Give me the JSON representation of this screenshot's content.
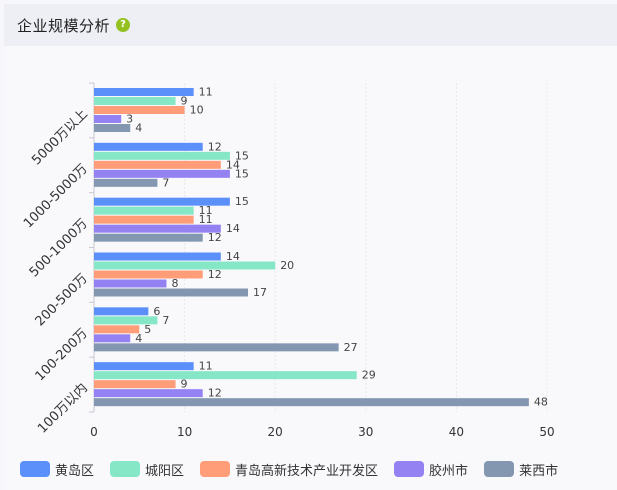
{
  "header": {
    "title": "企业规模分析",
    "help_icon": "question-circle-icon",
    "help_glyph": "?"
  },
  "chart_data": {
    "type": "bar",
    "orientation": "horizontal",
    "categories": [
      "5000万以上",
      "1000-5000万",
      "500-1000万",
      "200-500万",
      "100-200万",
      "100万以内"
    ],
    "series": [
      {
        "name": "黄岛区",
        "color": "#5b8ff9",
        "values": [
          11,
          12,
          15,
          14,
          6,
          11
        ]
      },
      {
        "name": "城阳区",
        "color": "#86e7c7",
        "values": [
          9,
          15,
          11,
          20,
          7,
          29
        ]
      },
      {
        "name": "青岛高新技术产业开发区",
        "color": "#ff9d78",
        "values": [
          10,
          14,
          11,
          12,
          5,
          9
        ]
      },
      {
        "name": "胶州市",
        "color": "#9482f3",
        "values": [
          3,
          15,
          14,
          8,
          4,
          12
        ]
      },
      {
        "name": "莱西市",
        "color": "#8497b1",
        "values": [
          4,
          7,
          12,
          17,
          27,
          48
        ]
      }
    ],
    "xlim": [
      0,
      50
    ],
    "xticks": [
      0,
      10,
      20,
      30,
      40,
      50
    ],
    "grid": true,
    "legend_position": "bottom"
  }
}
